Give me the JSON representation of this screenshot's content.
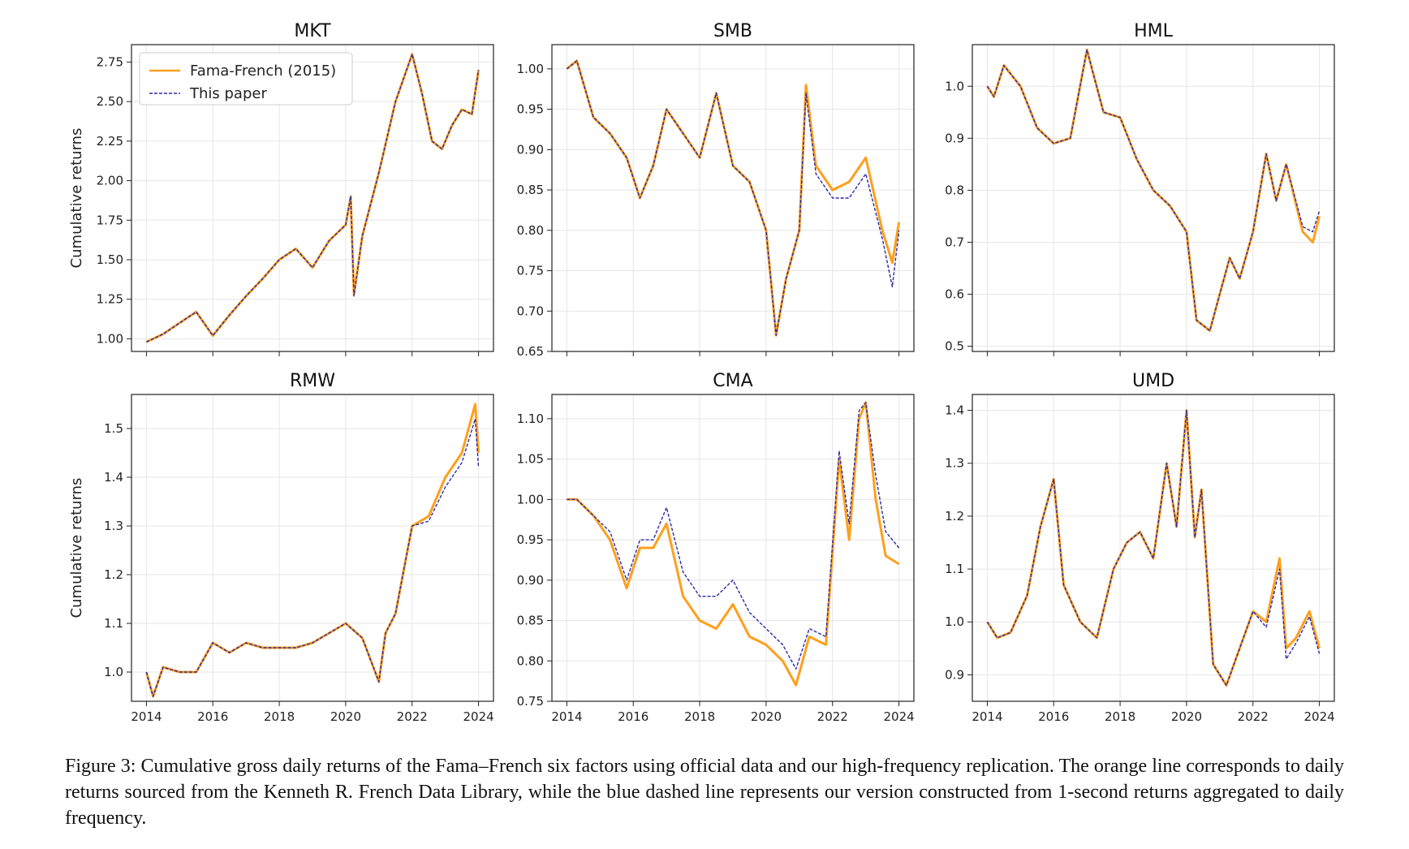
{
  "caption": "Figure 3:  Cumulative gross daily returns of the Fama–French six factors using official data and our high-frequency replication.  The orange line corresponds to daily returns sourced from the Kenneth R. French Data Library, while the blue dashed line represents our version constructed from 1-second returns aggregated to daily frequency.",
  "colors": {
    "fama_french": "#ff9f1c",
    "this_paper": "#2b2aa6",
    "grid": "#e6e6e6",
    "axes": "#222222"
  },
  "chart_data": [
    {
      "type": "line",
      "title": "MKT",
      "ylabel": "Cumulative returns",
      "xlim": [
        2014,
        2024
      ],
      "ylim": [
        0.92,
        2.86
      ],
      "xticks": [
        "2014",
        "2016",
        "2018",
        "2020",
        "2022",
        "2024"
      ],
      "show_xtick_labels": false,
      "yticks": [
        "1.00",
        "1.25",
        "1.50",
        "1.75",
        "2.00",
        "2.25",
        "2.50",
        "2.75"
      ],
      "legend": {
        "position": "top-left",
        "entries": [
          "Fama-French (2015)",
          "This paper"
        ]
      },
      "x": [
        2014.0,
        2014.5,
        2015.0,
        2015.5,
        2016.0,
        2016.5,
        2017.0,
        2017.5,
        2018.0,
        2018.5,
        2019.0,
        2019.5,
        2020.0,
        2020.15,
        2020.25,
        2020.5,
        2021.0,
        2021.5,
        2022.0,
        2022.3,
        2022.6,
        2022.9,
        2023.2,
        2023.5,
        2023.8,
        2024.0
      ],
      "series": [
        {
          "name": "Fama-French (2015)",
          "values": [
            0.98,
            1.03,
            1.1,
            1.17,
            1.02,
            1.15,
            1.27,
            1.38,
            1.5,
            1.57,
            1.45,
            1.62,
            1.72,
            1.9,
            1.28,
            1.65,
            2.05,
            2.5,
            2.8,
            2.55,
            2.25,
            2.2,
            2.35,
            2.45,
            2.42,
            2.7
          ]
        },
        {
          "name": "This paper",
          "values": [
            0.98,
            1.03,
            1.1,
            1.17,
            1.02,
            1.15,
            1.27,
            1.38,
            1.5,
            1.57,
            1.45,
            1.62,
            1.72,
            1.9,
            1.27,
            1.65,
            2.05,
            2.5,
            2.8,
            2.55,
            2.25,
            2.2,
            2.35,
            2.45,
            2.42,
            2.7
          ]
        }
      ]
    },
    {
      "type": "line",
      "title": "SMB",
      "ylabel": "",
      "xlim": [
        2014,
        2024
      ],
      "ylim": [
        0.65,
        1.03
      ],
      "xticks": [
        "2014",
        "2016",
        "2018",
        "2020",
        "2022",
        "2024"
      ],
      "show_xtick_labels": false,
      "yticks": [
        "0.65",
        "0.70",
        "0.75",
        "0.80",
        "0.85",
        "0.90",
        "0.95",
        "1.00"
      ],
      "x": [
        2014.0,
        2014.3,
        2014.8,
        2015.3,
        2015.8,
        2016.2,
        2016.6,
        2017.0,
        2017.5,
        2018.0,
        2018.5,
        2019.0,
        2019.5,
        2020.0,
        2020.3,
        2020.6,
        2021.0,
        2021.2,
        2021.5,
        2022.0,
        2022.5,
        2023.0,
        2023.5,
        2023.8,
        2024.0
      ],
      "series": [
        {
          "name": "Fama-French (2015)",
          "values": [
            1.0,
            1.01,
            0.94,
            0.92,
            0.89,
            0.84,
            0.88,
            0.95,
            0.92,
            0.89,
            0.97,
            0.88,
            0.86,
            0.8,
            0.67,
            0.74,
            0.8,
            0.98,
            0.88,
            0.85,
            0.86,
            0.89,
            0.8,
            0.76,
            0.81
          ]
        },
        {
          "name": "This paper",
          "values": [
            1.0,
            1.01,
            0.94,
            0.92,
            0.89,
            0.84,
            0.88,
            0.95,
            0.92,
            0.89,
            0.97,
            0.88,
            0.86,
            0.8,
            0.67,
            0.74,
            0.8,
            0.97,
            0.87,
            0.84,
            0.84,
            0.87,
            0.79,
            0.73,
            0.8
          ]
        }
      ]
    },
    {
      "type": "line",
      "title": "HML",
      "ylabel": "",
      "xlim": [
        2014,
        2024
      ],
      "ylim": [
        0.49,
        1.08
      ],
      "xticks": [
        "2014",
        "2016",
        "2018",
        "2020",
        "2022",
        "2024"
      ],
      "show_xtick_labels": false,
      "yticks": [
        "0.5",
        "0.6",
        "0.7",
        "0.8",
        "0.9",
        "1.0"
      ],
      "x": [
        2014.0,
        2014.2,
        2014.5,
        2015.0,
        2015.5,
        2016.0,
        2016.5,
        2017.0,
        2017.5,
        2018.0,
        2018.5,
        2019.0,
        2019.5,
        2020.0,
        2020.3,
        2020.7,
        2021.0,
        2021.3,
        2021.6,
        2022.0,
        2022.4,
        2022.7,
        2023.0,
        2023.5,
        2023.8,
        2024.0
      ],
      "series": [
        {
          "name": "Fama-French (2015)",
          "values": [
            1.0,
            0.98,
            1.04,
            1.0,
            0.92,
            0.89,
            0.9,
            1.07,
            0.95,
            0.94,
            0.86,
            0.8,
            0.77,
            0.72,
            0.55,
            0.53,
            0.6,
            0.67,
            0.63,
            0.72,
            0.87,
            0.78,
            0.85,
            0.72,
            0.7,
            0.75
          ]
        },
        {
          "name": "This paper",
          "values": [
            1.0,
            0.98,
            1.04,
            1.0,
            0.92,
            0.89,
            0.9,
            1.07,
            0.95,
            0.94,
            0.86,
            0.8,
            0.77,
            0.72,
            0.55,
            0.53,
            0.6,
            0.67,
            0.63,
            0.72,
            0.87,
            0.78,
            0.85,
            0.73,
            0.72,
            0.76
          ]
        }
      ]
    },
    {
      "type": "line",
      "title": "RMW",
      "ylabel": "Cumulative returns",
      "xlim": [
        2014,
        2024
      ],
      "ylim": [
        0.94,
        1.57
      ],
      "xticks": [
        "2014",
        "2016",
        "2018",
        "2020",
        "2022",
        "2024"
      ],
      "show_xtick_labels": true,
      "yticks": [
        "1.0",
        "1.1",
        "1.2",
        "1.3",
        "1.4",
        "1.5"
      ],
      "x": [
        2014.0,
        2014.2,
        2014.5,
        2015.0,
        2015.5,
        2016.0,
        2016.5,
        2017.0,
        2017.5,
        2018.0,
        2018.5,
        2019.0,
        2019.5,
        2020.0,
        2020.5,
        2021.0,
        2021.2,
        2021.5,
        2022.0,
        2022.5,
        2023.0,
        2023.5,
        2023.9,
        2024.0
      ],
      "series": [
        {
          "name": "Fama-French (2015)",
          "values": [
            1.0,
            0.95,
            1.01,
            1.0,
            1.0,
            1.06,
            1.04,
            1.06,
            1.05,
            1.05,
            1.05,
            1.06,
            1.08,
            1.1,
            1.07,
            0.98,
            1.08,
            1.12,
            1.3,
            1.32,
            1.4,
            1.45,
            1.55,
            1.45
          ]
        },
        {
          "name": "This paper",
          "values": [
            1.0,
            0.95,
            1.01,
            1.0,
            1.0,
            1.06,
            1.04,
            1.06,
            1.05,
            1.05,
            1.05,
            1.06,
            1.08,
            1.1,
            1.07,
            0.98,
            1.08,
            1.12,
            1.3,
            1.31,
            1.38,
            1.43,
            1.52,
            1.42
          ]
        }
      ]
    },
    {
      "type": "line",
      "title": "CMA",
      "ylabel": "",
      "xlim": [
        2014,
        2024
      ],
      "ylim": [
        0.75,
        1.13
      ],
      "xticks": [
        "2014",
        "2016",
        "2018",
        "2020",
        "2022",
        "2024"
      ],
      "show_xtick_labels": true,
      "yticks": [
        "0.75",
        "0.80",
        "0.85",
        "0.90",
        "0.95",
        "1.00",
        "1.05",
        "1.10"
      ],
      "x": [
        2014.0,
        2014.3,
        2014.8,
        2015.3,
        2015.8,
        2016.2,
        2016.6,
        2017.0,
        2017.5,
        2018.0,
        2018.5,
        2019.0,
        2019.5,
        2020.0,
        2020.5,
        2020.9,
        2021.3,
        2021.8,
        2022.2,
        2022.5,
        2022.8,
        2023.0,
        2023.3,
        2023.6,
        2024.0
      ],
      "series": [
        {
          "name": "Fama-French (2015)",
          "values": [
            1.0,
            1.0,
            0.98,
            0.95,
            0.89,
            0.94,
            0.94,
            0.97,
            0.88,
            0.85,
            0.84,
            0.87,
            0.83,
            0.82,
            0.8,
            0.77,
            0.83,
            0.82,
            1.05,
            0.95,
            1.1,
            1.12,
            1.0,
            0.93,
            0.92
          ]
        },
        {
          "name": "This paper",
          "values": [
            1.0,
            1.0,
            0.98,
            0.96,
            0.9,
            0.95,
            0.95,
            0.99,
            0.91,
            0.88,
            0.88,
            0.9,
            0.86,
            0.84,
            0.82,
            0.79,
            0.84,
            0.83,
            1.06,
            0.97,
            1.11,
            1.12,
            1.03,
            0.96,
            0.94
          ]
        }
      ]
    },
    {
      "type": "line",
      "title": "UMD",
      "ylabel": "",
      "xlim": [
        2014,
        2024
      ],
      "ylim": [
        0.85,
        1.43
      ],
      "xticks": [
        "2014",
        "2016",
        "2018",
        "2020",
        "2022",
        "2024"
      ],
      "show_xtick_labels": true,
      "yticks": [
        "0.9",
        "1.0",
        "1.1",
        "1.2",
        "1.3",
        "1.4"
      ],
      "x": [
        2014.0,
        2014.3,
        2014.7,
        2015.2,
        2015.6,
        2016.0,
        2016.3,
        2016.8,
        2017.3,
        2017.8,
        2018.2,
        2018.6,
        2019.0,
        2019.4,
        2019.7,
        2020.0,
        2020.25,
        2020.45,
        2020.8,
        2021.2,
        2021.6,
        2022.0,
        2022.4,
        2022.8,
        2023.0,
        2023.3,
        2023.7,
        2024.0
      ],
      "series": [
        {
          "name": "Fama-French (2015)",
          "values": [
            1.0,
            0.97,
            0.98,
            1.05,
            1.18,
            1.27,
            1.07,
            1.0,
            0.97,
            1.1,
            1.15,
            1.17,
            1.12,
            1.3,
            1.18,
            1.4,
            1.16,
            1.25,
            0.92,
            0.88,
            0.95,
            1.02,
            1.0,
            1.12,
            0.95,
            0.97,
            1.02,
            0.95
          ]
        },
        {
          "name": "This paper",
          "values": [
            1.0,
            0.97,
            0.98,
            1.05,
            1.18,
            1.27,
            1.07,
            1.0,
            0.97,
            1.1,
            1.15,
            1.17,
            1.12,
            1.3,
            1.18,
            1.4,
            1.16,
            1.25,
            0.92,
            0.88,
            0.95,
            1.02,
            0.99,
            1.1,
            0.93,
            0.96,
            1.01,
            0.94
          ]
        }
      ]
    }
  ]
}
